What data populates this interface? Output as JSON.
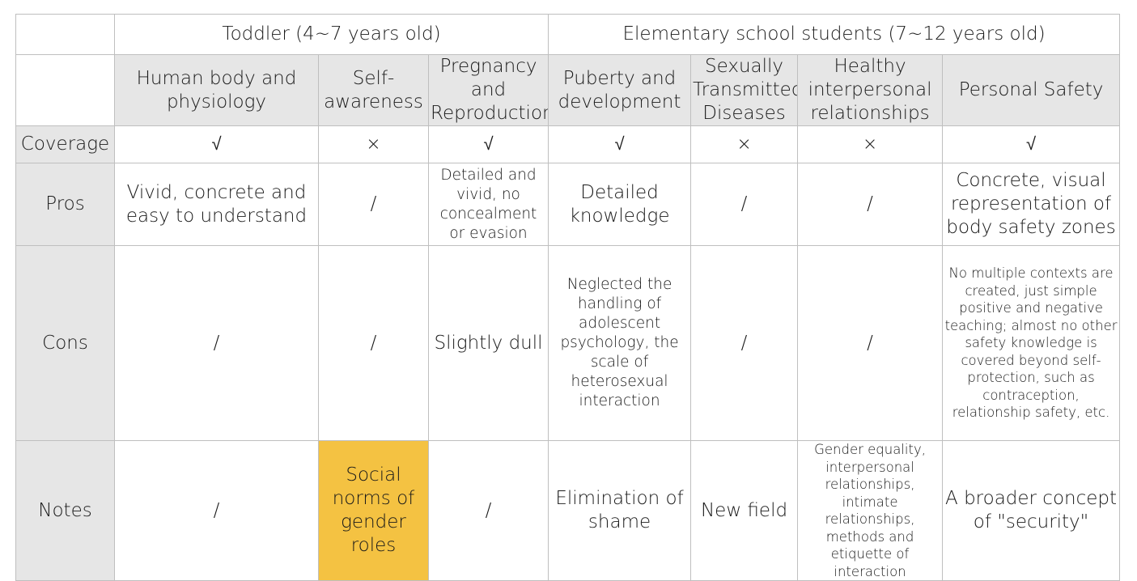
{
  "groups": {
    "toddler": "Toddler (4~7 years old)",
    "elementary": "Elementary school students (7~12 years old)"
  },
  "topics": [
    "Human body and physiology",
    "Self-awareness",
    "Pregnancy and Reproduction",
    "Puberty and development",
    "Sexually Transmitted Diseases",
    "Healthy interpersonal relationships",
    "Personal Safety"
  ],
  "row_labels": {
    "coverage": "Coverage",
    "pros": "Pros",
    "cons": "Cons",
    "notes": "Notes"
  },
  "coverage": [
    "√",
    "×",
    "√",
    "√",
    "×",
    "×",
    "√"
  ],
  "pros": [
    "Vivid, concrete and easy to understand",
    "/",
    "Detailed and vivid, no concealment or evasion",
    "Detailed knowledge",
    "/",
    "/",
    "Concrete, visual representation of body safety zones"
  ],
  "cons": [
    "/",
    "/",
    "Slightly dull",
    "Neglected the handling of adolescent psychology, the scale of heterosexual interaction",
    "/",
    "/",
    "No multiple contexts are created, just simple positive and negative teaching; almost no other safety knowledge is covered beyond self-protection, such as contraception, relationship safety, etc."
  ],
  "notes": [
    "/",
    "Social norms of gender roles",
    "/",
    "Elimination of shame",
    "New field",
    "Gender equality, interpersonal relationships, intimate relationships, methods and etiquette of interaction",
    "A broader concept of \"security\""
  ],
  "colors": {
    "header_grey": "#e6e6e6",
    "highlight": "#f4c242",
    "border": "#bfbfbf"
  }
}
